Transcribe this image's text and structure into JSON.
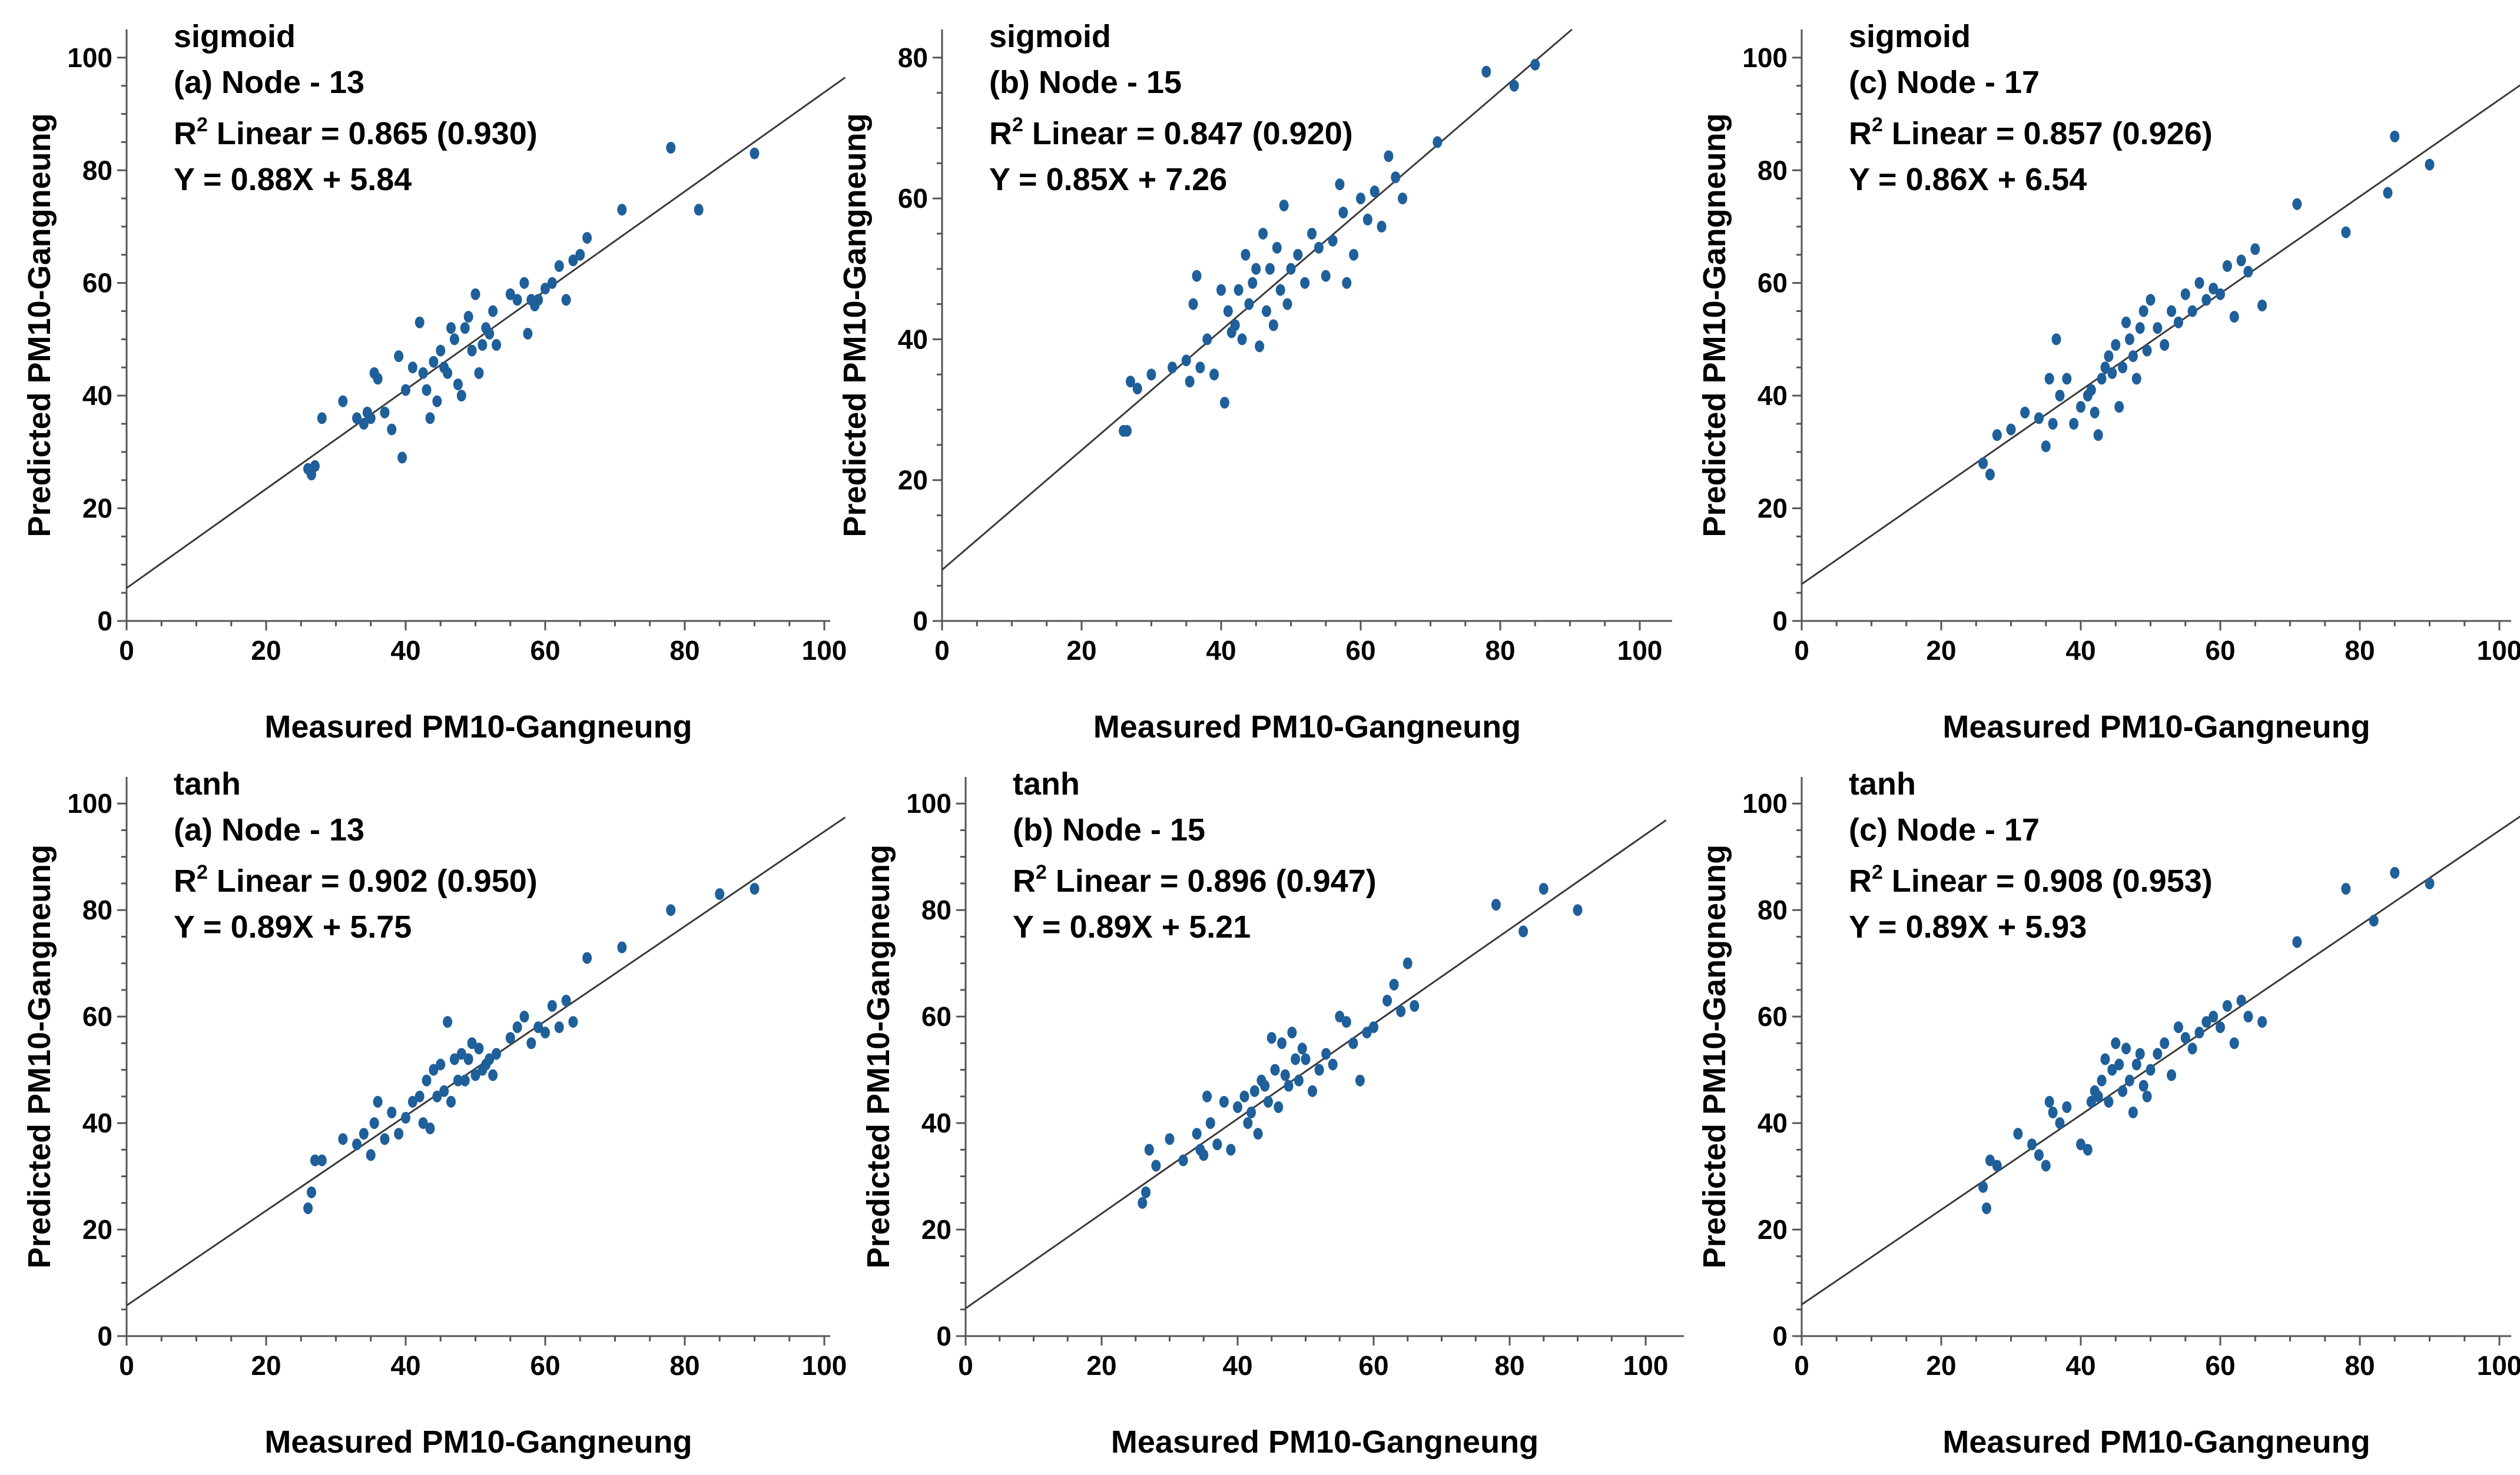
{
  "colors": {
    "point": "#1f5f9a",
    "line": "#3a3a3a",
    "axis": "#555555",
    "text": "#000000",
    "background": "#ffffff"
  },
  "chart_data": [
    {
      "type": "scatter",
      "activation": "sigmoid",
      "panel_label": "(a) Node - 13",
      "r2_label": "R",
      "r2_sup": "2",
      "r2_text": " Linear = 0.865 (0.930)",
      "equation": "Y = 0.88X + 5.84",
      "xlabel": "Measured PM10-Gangneung",
      "ylabel": "Predicted PM10-Gangneung",
      "xlim": [
        0,
        105
      ],
      "ylim": [
        0,
        105
      ],
      "xticks": [
        0,
        20,
        40,
        60,
        80,
        100
      ],
      "yticks": [
        0,
        20,
        40,
        60,
        80,
        100
      ],
      "fit": {
        "slope": 0.88,
        "intercept": 5.84
      },
      "x": [
        26,
        26.5,
        27,
        28,
        31,
        33,
        34,
        34.5,
        35,
        35.5,
        36,
        37,
        38,
        39,
        39.5,
        40,
        41,
        42,
        42.5,
        43,
        43.5,
        44,
        44.5,
        45,
        45.5,
        46,
        46.5,
        47,
        47.5,
        48,
        48.5,
        49,
        49.5,
        50,
        50.5,
        51,
        51.5,
        52,
        52.5,
        53,
        55,
        56,
        57,
        57.5,
        58,
        58.5,
        59,
        60,
        61,
        62,
        63,
        64,
        65,
        66,
        71,
        78,
        82,
        90
      ],
      "y": [
        27,
        26,
        27.5,
        36,
        39,
        36,
        35,
        37,
        36,
        44,
        43,
        37,
        34,
        47,
        29,
        41,
        45,
        53,
        44,
        41,
        36,
        46,
        39,
        48,
        45,
        44,
        52,
        50,
        42,
        40,
        52,
        54,
        48,
        58,
        44,
        49,
        52,
        51,
        55,
        49,
        58,
        57,
        60,
        51,
        57,
        56,
        57,
        59,
        60,
        63,
        57,
        64,
        65,
        68,
        73,
        84,
        73,
        83
      ]
    },
    {
      "type": "scatter",
      "activation": "sigmoid",
      "panel_label": "(b) Node - 15",
      "r2_label": "R",
      "r2_sup": "2",
      "r2_text": " Linear = 0.847 (0.920)",
      "equation": "Y = 0.85X + 7.26",
      "xlabel": "Measured PM10-Gangneung",
      "ylabel": "Predicted PM10-Gangneung",
      "xlim": [
        0,
        105
      ],
      "ylim": [
        0,
        84
      ],
      "xticks": [
        0,
        20,
        40,
        60,
        80,
        100
      ],
      "yticks": [
        0,
        20,
        40,
        60,
        80
      ],
      "fit": {
        "slope": 0.85,
        "intercept": 7.26
      },
      "x": [
        26,
        26.5,
        27,
        28,
        30,
        33,
        35,
        35.5,
        36,
        36.5,
        37,
        38,
        39,
        40,
        40.5,
        41,
        41.5,
        42,
        42.5,
        43,
        43.5,
        44,
        44.5,
        45,
        45.5,
        46,
        46.5,
        47,
        47.5,
        48,
        48.5,
        49,
        49.5,
        50,
        51,
        52,
        53,
        54,
        55,
        56,
        57,
        57.5,
        58,
        59,
        60,
        61,
        62,
        63,
        64,
        65,
        66,
        71,
        78,
        82,
        85
      ],
      "y": [
        27,
        27,
        34,
        33,
        35,
        36,
        37,
        34,
        45,
        49,
        36,
        40,
        35,
        47,
        31,
        44,
        41,
        42,
        47,
        40,
        52,
        45,
        48,
        50,
        39,
        55,
        44,
        50,
        42,
        53,
        47,
        59,
        45,
        50,
        52,
        48,
        55,
        53,
        49,
        54,
        62,
        58,
        48,
        52,
        60,
        57,
        61,
        56,
        66,
        63,
        60,
        68,
        78,
        76,
        79
      ]
    },
    {
      "type": "scatter",
      "activation": "sigmoid",
      "panel_label": "(c) Node - 17",
      "r2_label": "R",
      "r2_sup": "2",
      "r2_text": " Linear = 0.857 (0.926)",
      "equation": "Y = 0.86X + 6.54",
      "xlabel": "Measured PM10-Gangneung",
      "ylabel": "Predicted PM10-Gangneung",
      "xlim": [
        0,
        105
      ],
      "ylim": [
        0,
        105
      ],
      "xticks": [
        0,
        20,
        40,
        60,
        80,
        100
      ],
      "yticks": [
        0,
        20,
        40,
        60,
        80,
        100
      ],
      "fit": {
        "slope": 0.86,
        "intercept": 6.54
      },
      "x": [
        26,
        27,
        28,
        30,
        32,
        34,
        35,
        35.5,
        36,
        36.5,
        37,
        38,
        39,
        40,
        41,
        41.5,
        42,
        42.5,
        43,
        43.5,
        44,
        44.5,
        45,
        45.5,
        46,
        46.5,
        47,
        47.5,
        48,
        48.5,
        49,
        49.5,
        50,
        51,
        52,
        53,
        54,
        55,
        56,
        57,
        58,
        59,
        60,
        61,
        62,
        63,
        64,
        65,
        66,
        71,
        78,
        84,
        85,
        90
      ],
      "y": [
        28,
        26,
        33,
        34,
        37,
        36,
        31,
        43,
        35,
        50,
        40,
        43,
        35,
        38,
        40,
        41,
        37,
        33,
        43,
        45,
        47,
        44,
        49,
        38,
        45,
        53,
        50,
        47,
        43,
        52,
        55,
        48,
        57,
        52,
        49,
        55,
        53,
        58,
        55,
        60,
        57,
        59,
        58,
        63,
        54,
        64,
        62,
        66,
        56,
        74,
        69,
        76,
        86,
        81
      ]
    },
    {
      "type": "scatter",
      "activation": "tanh",
      "panel_label": "(a) Node - 13",
      "r2_label": "R",
      "r2_sup": "2",
      "r2_text": " Linear = 0.902 (0.950)",
      "equation": "Y = 0.89X + 5.75",
      "xlabel": "Measured PM10-Gangneung",
      "ylabel": "Predicted PM10-Gangneung",
      "xlim": [
        0,
        105
      ],
      "ylim": [
        0,
        105
      ],
      "xticks": [
        0,
        20,
        40,
        60,
        80,
        100
      ],
      "yticks": [
        0,
        20,
        40,
        60,
        80,
        100
      ],
      "fit": {
        "slope": 0.89,
        "intercept": 5.75
      },
      "x": [
        26,
        26.5,
        27,
        28,
        31,
        33,
        34,
        35,
        35.5,
        36,
        37,
        38,
        39,
        40,
        41,
        42,
        42.5,
        43,
        43.5,
        44,
        44.5,
        45,
        45.5,
        46,
        46.5,
        47,
        47.5,
        48,
        48.5,
        49,
        49.5,
        50,
        50.5,
        51,
        51.5,
        52,
        52.5,
        53,
        55,
        56,
        57,
        58,
        59,
        60,
        61,
        62,
        63,
        64,
        66,
        71,
        78,
        85,
        90
      ],
      "y": [
        24,
        27,
        33,
        33,
        37,
        36,
        38,
        34,
        40,
        44,
        37,
        42,
        38,
        41,
        44,
        45,
        40,
        48,
        39,
        50,
        45,
        51,
        46,
        59,
        44,
        52,
        48,
        53,
        48,
        52,
        55,
        49,
        54,
        50,
        51,
        52,
        49,
        53,
        56,
        58,
        60,
        55,
        58,
        57,
        62,
        58,
        63,
        59,
        71,
        73,
        80,
        83,
        84
      ]
    },
    {
      "type": "scatter",
      "activation": "tanh",
      "panel_label": "(b) Node - 15",
      "r2_label": "R",
      "r2_sup": "2",
      "r2_text": " Linear = 0.896 (0.947)",
      "equation": "Y = 0.89X + 5.21",
      "xlabel": "Measured PM10-Gangneung",
      "ylabel": "Predicted PM10-Gangneung",
      "xlim": [
        0,
        105
      ],
      "ylim": [
        0,
        105
      ],
      "xticks": [
        0,
        20,
        40,
        60,
        80,
        100
      ],
      "yticks": [
        0,
        20,
        40,
        60,
        80,
        100
      ],
      "fit": {
        "slope": 0.89,
        "intercept": 5.21
      },
      "x": [
        26,
        26.5,
        27,
        28,
        30,
        32,
        34,
        34.5,
        35,
        35.5,
        36,
        37,
        38,
        39,
        40,
        41,
        41.5,
        42,
        42.5,
        43,
        43.5,
        44,
        44.5,
        45,
        45.5,
        46,
        46.5,
        47,
        47.5,
        48,
        48.5,
        49,
        49.5,
        50,
        51,
        52,
        53,
        54,
        55,
        56,
        57,
        58,
        59,
        60,
        62,
        63,
        64,
        65,
        66,
        78,
        82,
        85,
        90
      ],
      "y": [
        25,
        27,
        35,
        32,
        37,
        33,
        38,
        35,
        34,
        45,
        40,
        36,
        44,
        35,
        43,
        45,
        40,
        42,
        46,
        38,
        48,
        47,
        44,
        56,
        50,
        43,
        55,
        49,
        47,
        57,
        52,
        48,
        54,
        52,
        46,
        50,
        53,
        51,
        60,
        59,
        55,
        48,
        57,
        58,
        63,
        66,
        61,
        70,
        62,
        81,
        76,
        84,
        80
      ]
    },
    {
      "type": "scatter",
      "activation": "tanh",
      "panel_label": "(c) Node - 17",
      "r2_label": "R",
      "r2_sup": "2",
      "r2_text": " Linear = 0.908 (0.953)",
      "equation": "Y = 0.89X + 5.93",
      "xlabel": "Measured PM10-Gangneung",
      "ylabel": "Predicted PM10-Gangneung",
      "xlim": [
        0,
        105
      ],
      "ylim": [
        0,
        105
      ],
      "xticks": [
        0,
        20,
        40,
        60,
        80,
        100
      ],
      "yticks": [
        0,
        20,
        40,
        60,
        80,
        100
      ],
      "fit": {
        "slope": 0.89,
        "intercept": 5.93
      },
      "x": [
        26,
        26.5,
        27,
        28,
        31,
        33,
        34,
        35,
        35.5,
        36,
        37,
        38,
        40,
        41,
        41.5,
        42,
        42.5,
        43,
        43.5,
        44,
        44.5,
        45,
        45.5,
        46,
        46.5,
        47,
        47.5,
        48,
        48.5,
        49,
        49.5,
        50,
        51,
        52,
        53,
        54,
        55,
        56,
        57,
        58,
        59,
        60,
        61,
        62,
        63,
        64,
        66,
        71,
        78,
        82,
        85,
        90
      ],
      "y": [
        28,
        24,
        33,
        32,
        38,
        36,
        34,
        32,
        44,
        42,
        40,
        43,
        36,
        35,
        44,
        46,
        45,
        48,
        52,
        44,
        50,
        55,
        51,
        46,
        54,
        48,
        42,
        51,
        53,
        47,
        45,
        50,
        53,
        55,
        49,
        58,
        56,
        54,
        57,
        59,
        60,
        58,
        62,
        55,
        63,
        60,
        59,
        74,
        84,
        78,
        87,
        85
      ]
    }
  ]
}
